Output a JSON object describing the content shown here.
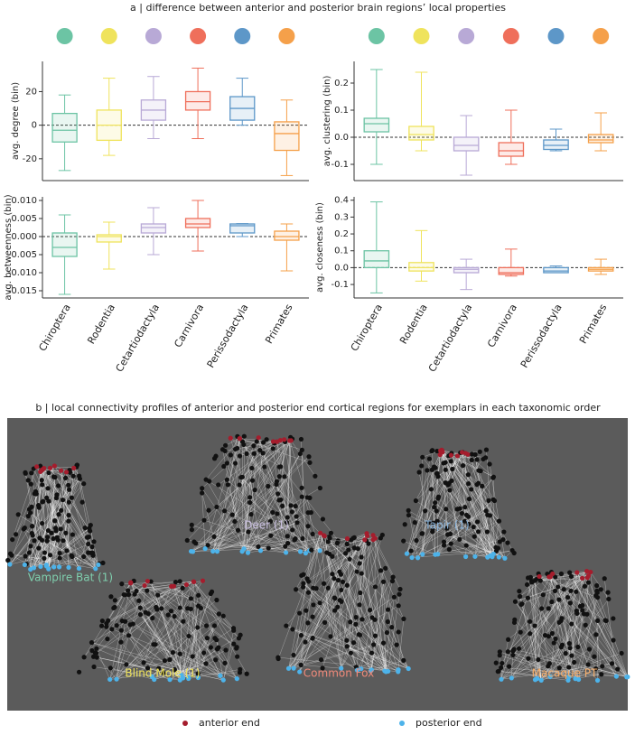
{
  "panel_a_title": "a | difference between anterior and posterior brain regions’ local properties",
  "chart_data": [
    {
      "type": "box",
      "ylabel": "avg. degree (bin)",
      "ylim": [
        -33,
        38
      ],
      "yticks": [
        -20,
        0,
        20
      ],
      "hline": 0,
      "colors": [
        "#6cc4a4",
        "#efe35c",
        "#b8a9d6",
        "#ef6f5b",
        "#5d97c8",
        "#f5a04a"
      ],
      "boxes": [
        {
          "min": -27,
          "q1": -10,
          "median": -3,
          "q3": 7,
          "max": 18
        },
        {
          "min": -18,
          "q1": -9,
          "median": 0,
          "q3": 9,
          "max": 28
        },
        {
          "min": -8,
          "q1": 3,
          "median": 9,
          "q3": 15,
          "max": 29
        },
        {
          "min": -8,
          "q1": 9,
          "median": 14,
          "q3": 20,
          "max": 34
        },
        {
          "min": 0,
          "q1": 3,
          "median": 10,
          "q3": 17,
          "max": 28
        },
        {
          "min": -30,
          "q1": -15,
          "median": -5,
          "q3": 2,
          "max": 15
        }
      ]
    },
    {
      "type": "box",
      "ylabel": "avg. betweenness (bin)",
      "ylim": [
        -0.017,
        0.011
      ],
      "yticks": [
        -0.015,
        {
          "value": -0.01,
          "label": "-0.010"
        },
        -0.005,
        {
          "value": 0,
          "label": "0.000"
        },
        0.005,
        {
          "value": 0.01,
          "label": "0.010"
        }
      ],
      "hline": 0,
      "colors": [
        "#6cc4a4",
        "#efe35c",
        "#b8a9d6",
        "#ef6f5b",
        "#5d97c8",
        "#f5a04a"
      ],
      "categories": [
        "Chiroptera",
        "Rodentia",
        "Cetartiodactyla",
        "Carnivora",
        "Perissodactyla",
        "Primates"
      ],
      "boxes": [
        {
          "min": -0.016,
          "q1": -0.0055,
          "median": -0.003,
          "q3": 0.001,
          "max": 0.006
        },
        {
          "min": -0.009,
          "q1": -0.0015,
          "median": 0,
          "q3": 0.0005,
          "max": 0.004
        },
        {
          "min": -0.005,
          "q1": 0.001,
          "median": 0.0025,
          "q3": 0.0035,
          "max": 0.008
        },
        {
          "min": -0.004,
          "q1": 0.0025,
          "median": 0.0035,
          "q3": 0.005,
          "max": 0.01
        },
        {
          "min": 0,
          "q1": 0.001,
          "median": 0.003,
          "q3": 0.0035,
          "max": 0.0036
        },
        {
          "min": -0.0095,
          "q1": -0.001,
          "median": 0,
          "q3": 0.0015,
          "max": 0.0035
        }
      ]
    },
    {
      "type": "box",
      "ylabel": "avg. clustering (bin)",
      "ylim": [
        -0.16,
        0.28
      ],
      "yticks": [
        -0.1,
        {
          "value": 0,
          "label": "0.0"
        },
        0.1,
        0.2
      ],
      "hline": 0,
      "colors": [
        "#6cc4a4",
        "#efe35c",
        "#b8a9d6",
        "#ef6f5b",
        "#5d97c8",
        "#f5a04a"
      ],
      "boxes": [
        {
          "min": -0.1,
          "q1": 0.02,
          "median": 0.05,
          "q3": 0.07,
          "max": 0.25
        },
        {
          "min": -0.05,
          "q1": -0.01,
          "median": 0.01,
          "q3": 0.04,
          "max": 0.24
        },
        {
          "min": -0.14,
          "q1": -0.05,
          "median": -0.03,
          "q3": 0,
          "max": 0.08
        },
        {
          "min": -0.1,
          "q1": -0.07,
          "median": -0.05,
          "q3": -0.02,
          "max": 0.1
        },
        {
          "min": -0.05,
          "q1": -0.045,
          "median": -0.03,
          "q3": -0.01,
          "max": 0.03
        },
        {
          "min": -0.05,
          "q1": -0.02,
          "median": -0.01,
          "q3": 0.01,
          "max": 0.09
        }
      ]
    },
    {
      "type": "box",
      "ylabel": "avg. closeness (bin)",
      "ylim": [
        -0.18,
        0.42
      ],
      "yticks": [
        -0.1,
        {
          "value": 0,
          "label": "0.0"
        },
        0.1,
        0.2,
        0.3,
        0.4
      ],
      "hline": 0,
      "colors": [
        "#6cc4a4",
        "#efe35c",
        "#b8a9d6",
        "#ef6f5b",
        "#5d97c8",
        "#f5a04a"
      ],
      "categories": [
        "Chiroptera",
        "Rodentia",
        "Cetartiodactyla",
        "Carnivora",
        "Perissodactyla",
        "Primates"
      ],
      "boxes": [
        {
          "min": -0.15,
          "q1": 0,
          "median": 0.04,
          "q3": 0.1,
          "max": 0.39
        },
        {
          "min": -0.08,
          "q1": -0.02,
          "median": 0,
          "q3": 0.03,
          "max": 0.22
        },
        {
          "min": -0.13,
          "q1": -0.03,
          "median": -0.01,
          "q3": 0,
          "max": 0.05
        },
        {
          "min": -0.05,
          "q1": -0.04,
          "median": -0.03,
          "q3": 0,
          "max": 0.11
        },
        {
          "min": -0.03,
          "q1": -0.03,
          "median": -0.02,
          "q3": 0,
          "max": 0.01
        },
        {
          "min": -0.04,
          "q1": -0.02,
          "median": -0.01,
          "q3": 0,
          "max": 0.05
        }
      ]
    }
  ],
  "panel_b": {
    "title": "b | local connectivity profiles of anterior and posterior end cortical regions for exemplars in each taxonomic order",
    "exemplars": [
      {
        "label": "Vampire Bat (1)",
        "color": "#7fcfae"
      },
      {
        "label": "Deer (1)",
        "color": "#c9bfe0"
      },
      {
        "label": "Tapir (1)",
        "color": "#8db8e0"
      },
      {
        "label": "Blind Mole (1)",
        "color": "#f2e65a"
      },
      {
        "label": "Common Fox",
        "color": "#f08a7a"
      },
      {
        "label": "Macaque PT",
        "color": "#f5ad6a"
      }
    ],
    "legend": [
      {
        "label": "anterior end",
        "color": "#a51d2d"
      },
      {
        "label": "posterior end",
        "color": "#4db3ea"
      }
    ]
  }
}
